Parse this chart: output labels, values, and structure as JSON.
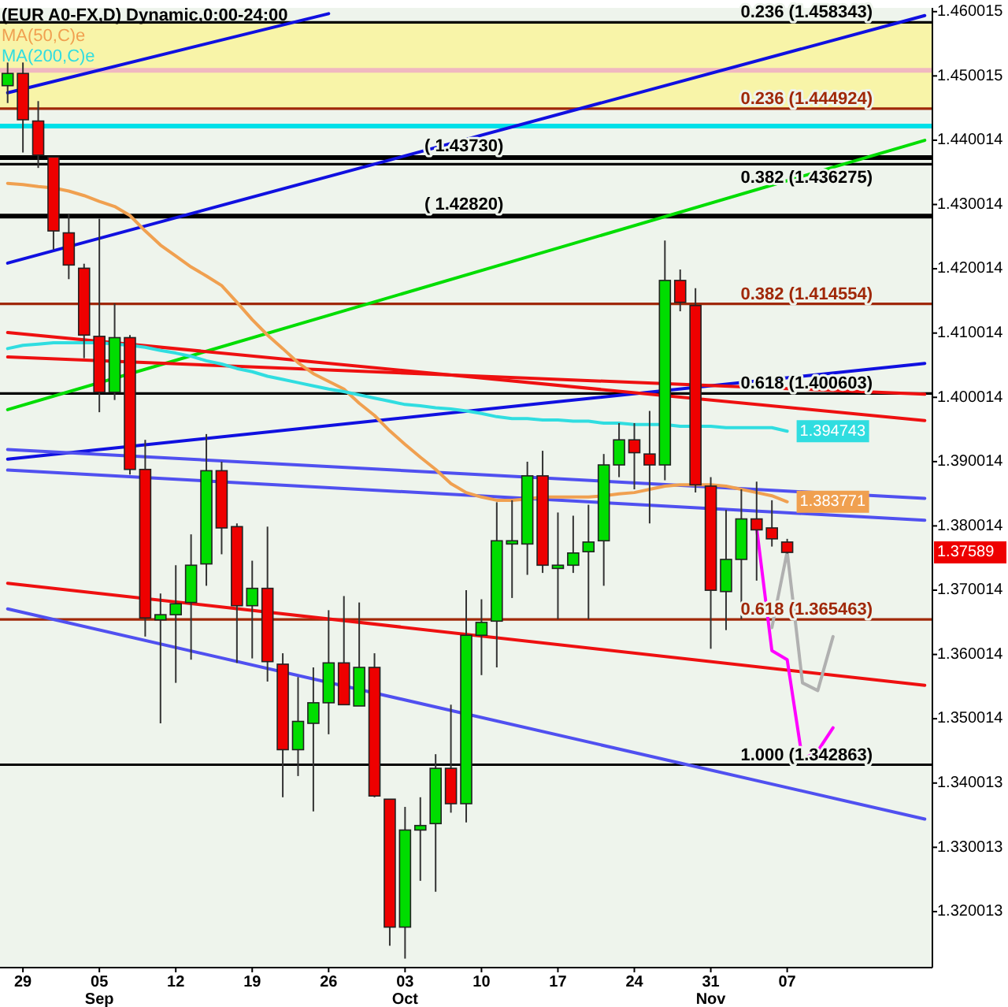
{
  "chart_data": {
    "type": "candlestick",
    "title": "(EUR A0-FX,D) Dynamic,0:00-24:00",
    "categories": [
      null,
      "29",
      null,
      null,
      null,
      null,
      "05\nSep",
      null,
      null,
      null,
      null,
      "12",
      null,
      null,
      null,
      null,
      "19",
      null,
      null,
      null,
      null,
      "26",
      null,
      null,
      null,
      null,
      "03\nOct",
      null,
      null,
      null,
      null,
      "10",
      null,
      null,
      null,
      null,
      "17",
      null,
      null,
      null,
      null,
      "24",
      null,
      null,
      null,
      null,
      "31\nNov",
      null,
      null,
      null,
      null,
      "07",
      null,
      null,
      null,
      null,
      null,
      null,
      null,
      null,
      null
    ],
    "ohlc": [
      [
        1.4485,
        1.4521,
        1.4458,
        1.4504
      ],
      [
        1.4504,
        1.4521,
        1.4381,
        1.4432
      ],
      [
        1.443,
        1.4461,
        1.4357,
        1.4377
      ],
      [
        1.4374,
        1.4374,
        1.423,
        1.4259
      ],
      [
        1.4256,
        1.4285,
        1.4184,
        1.4206
      ],
      [
        1.4201,
        1.4208,
        1.4061,
        1.4097
      ],
      [
        1.4095,
        1.4278,
        1.3977,
        1.4008
      ],
      [
        1.4008,
        1.4146,
        1.3996,
        1.4093
      ],
      [
        1.4093,
        1.4097,
        1.388,
        1.3888
      ],
      [
        1.3888,
        1.3934,
        1.3628,
        1.3657
      ],
      [
        1.3654,
        1.3695,
        1.3493,
        1.3662
      ],
      [
        1.3662,
        1.3739,
        1.3556,
        1.3679
      ],
      [
        1.3681,
        1.3787,
        1.3592,
        1.3739
      ],
      [
        1.3741,
        1.3943,
        1.3707,
        1.3886
      ],
      [
        1.3886,
        1.39,
        1.3756,
        1.3797
      ],
      [
        1.3799,
        1.3804,
        1.3587,
        1.3676
      ],
      [
        1.3676,
        1.3746,
        1.3594,
        1.3703
      ],
      [
        1.3703,
        1.3799,
        1.3558,
        1.3589
      ],
      [
        1.3585,
        1.3602,
        1.3378,
        1.3452
      ],
      [
        1.3452,
        1.3565,
        1.3411,
        1.3496
      ],
      [
        1.3493,
        1.358,
        1.3356,
        1.3525
      ],
      [
        1.3525,
        1.3669,
        1.3476,
        1.3587
      ],
      [
        1.3587,
        1.3691,
        1.3522,
        1.3522
      ],
      [
        1.352,
        1.3681,
        1.352,
        1.358
      ],
      [
        1.358,
        1.3602,
        1.3378,
        1.338
      ],
      [
        1.3375,
        1.3375,
        1.3147,
        1.3176
      ],
      [
        1.3176,
        1.3363,
        1.3127,
        1.3327
      ],
      [
        1.3327,
        1.3378,
        1.3248,
        1.3334
      ],
      [
        1.3337,
        1.3445,
        1.3231,
        1.3423
      ],
      [
        1.3423,
        1.3522,
        1.3354,
        1.3368
      ],
      [
        1.3368,
        1.37,
        1.3339,
        1.363
      ],
      [
        1.363,
        1.3686,
        1.3568,
        1.365
      ],
      [
        1.3652,
        1.3837,
        1.358,
        1.3777
      ],
      [
        1.3772,
        1.384,
        1.3688,
        1.3777
      ],
      [
        1.3772,
        1.39,
        1.3724,
        1.3878
      ],
      [
        1.3878,
        1.3917,
        1.3727,
        1.3739
      ],
      [
        1.3734,
        1.3821,
        1.3655,
        1.3739
      ],
      [
        1.3739,
        1.3816,
        1.3727,
        1.3758
      ],
      [
        1.376,
        1.3833,
        1.3655,
        1.3775
      ],
      [
        1.3777,
        1.3912,
        1.3707,
        1.3895
      ],
      [
        1.3895,
        1.396,
        1.3876,
        1.3934
      ],
      [
        1.3934,
        1.396,
        1.3857,
        1.3914
      ],
      [
        1.3912,
        1.3979,
        1.3804,
        1.3895
      ],
      [
        1.3895,
        1.4244,
        1.3871,
        1.4182
      ],
      [
        1.4182,
        1.4199,
        1.4134,
        1.4148
      ],
      [
        1.4143,
        1.417,
        1.3852,
        1.3864
      ],
      [
        1.3862,
        1.3876,
        1.3609,
        1.37
      ],
      [
        1.3698,
        1.3825,
        1.3638,
        1.3748
      ],
      [
        1.3748,
        1.3857,
        1.3655,
        1.3811
      ],
      [
        1.3811,
        1.3869,
        1.3715,
        1.3794
      ],
      [
        1.3797,
        1.384,
        1.3768,
        1.378
      ],
      [
        1.3775,
        1.378,
        1.3757,
        1.37589
      ],
      null,
      null,
      null,
      null,
      null,
      null,
      null,
      null,
      null
    ],
    "colors": [
      "#00dd00",
      "#ee0000",
      "#ee0000",
      "#ee0000",
      "#ee0000",
      "#ee0000",
      "#ee0000",
      "#00dd00",
      "#ee0000",
      "#ee0000",
      "#00dd00",
      "#00dd00",
      "#00dd00",
      "#00dd00",
      "#ee0000",
      "#ee0000",
      "#00dd00",
      "#ee0000",
      "#ee0000",
      "#00dd00",
      "#00dd00",
      "#00dd00",
      "#ee0000",
      "#00dd00",
      "#ee0000",
      "#ee0000",
      "#00dd00",
      "#00dd00",
      "#00dd00",
      "#ee0000",
      "#00dd00",
      "#00dd00",
      "#00dd00",
      "#00dd00",
      "#00dd00",
      "#ee0000",
      "#00dd00",
      "#00dd00",
      "#00dd00",
      "#00dd00",
      "#00dd00",
      "#ee0000",
      "#ee0000",
      "#00dd00",
      "#ee0000",
      "#ee0000",
      "#ee0000",
      "#00dd00",
      "#00dd00",
      "#ee0000",
      "#ee0000",
      "#ee0000",
      null,
      null,
      null,
      null,
      null,
      null,
      null,
      null,
      null
    ],
    "value_labels": [
      null,
      null,
      null,
      null,
      null,
      null,
      null,
      null,
      null,
      null,
      null,
      null,
      null,
      null,
      null,
      null,
      null,
      null,
      null,
      null,
      null,
      null,
      null,
      null,
      null,
      null,
      null,
      null,
      null,
      null,
      null,
      null,
      null,
      null,
      null,
      null,
      null,
      null,
      null,
      null,
      null,
      null,
      null,
      null,
      null,
      null,
      null,
      null,
      null,
      null,
      null,
      "1.37589",
      null,
      null,
      null,
      null,
      null,
      null,
      null,
      null,
      null
    ],
    "series": [
      {
        "type": "line",
        "name": "MA(50,C)e",
        "color": "#f0a050",
        "values": [
          1.4333,
          1.4331,
          1.4328,
          1.4326,
          1.4321,
          1.4314,
          1.4305,
          1.4297,
          1.4283,
          1.4259,
          1.4237,
          1.422,
          1.4203,
          1.4189,
          1.4174,
          1.4148,
          1.4121,
          1.4097,
          1.4076,
          1.4054,
          1.4037,
          1.4025,
          1.4013,
          1.3991,
          1.3972,
          1.3948,
          1.3927,
          1.3907,
          1.3888,
          1.3866,
          1.3852,
          1.3845,
          1.384,
          1.384,
          1.3842,
          1.3845,
          1.3845,
          1.3845,
          1.3845,
          1.3847,
          1.385,
          1.3852,
          1.3857,
          1.3862,
          1.3864,
          1.3864,
          1.3864,
          1.3862,
          1.3857,
          1.3852,
          1.3847,
          1.383771,
          null,
          null,
          null,
          null,
          null,
          null,
          null,
          null,
          null
        ],
        "value_labels": [
          null,
          null,
          null,
          null,
          null,
          null,
          null,
          null,
          null,
          null,
          null,
          null,
          null,
          null,
          null,
          null,
          null,
          null,
          null,
          null,
          null,
          null,
          null,
          null,
          null,
          null,
          null,
          null,
          null,
          null,
          null,
          null,
          null,
          null,
          null,
          null,
          null,
          null,
          null,
          null,
          null,
          null,
          null,
          null,
          null,
          null,
          null,
          null,
          null,
          null,
          null,
          "1.383771",
          null,
          null,
          null,
          null,
          null,
          null,
          null,
          null,
          null
        ]
      },
      {
        "type": "line",
        "name": "MA(200,C)e",
        "color": "#30dde0",
        "values": [
          1.4076,
          1.4081,
          1.4083,
          1.4085,
          1.4085,
          1.4085,
          1.4085,
          null,
          1.4081,
          1.4078,
          1.4073,
          1.4069,
          1.4064,
          1.4057,
          1.4052,
          1.4045,
          1.404,
          1.4033,
          1.4028,
          1.4023,
          1.4018,
          1.4013,
          1.4009,
          1.4004,
          1.3999,
          1.3994,
          1.3989,
          1.3987,
          1.3984,
          1.3982,
          1.3979,
          1.3975,
          1.397,
          1.3967,
          1.3967,
          1.3965,
          1.3965,
          1.3963,
          1.3963,
          1.396,
          1.396,
          1.3958,
          1.3958,
          1.3958,
          1.3955,
          1.3955,
          1.3955,
          1.3953,
          1.3953,
          1.3953,
          1.3953,
          1.394743,
          null,
          null,
          null,
          null,
          null,
          null,
          null,
          null,
          null
        ],
        "value_labels": [
          null,
          null,
          null,
          null,
          null,
          null,
          null,
          null,
          null,
          null,
          null,
          null,
          null,
          null,
          null,
          null,
          null,
          null,
          null,
          null,
          null,
          null,
          null,
          null,
          null,
          null,
          null,
          null,
          null,
          null,
          null,
          null,
          null,
          null,
          null,
          null,
          null,
          null,
          null,
          null,
          null,
          null,
          null,
          null,
          null,
          null,
          null,
          null,
          null,
          null,
          null,
          "1.394743",
          null,
          null,
          null,
          null,
          null,
          null,
          null,
          null,
          null
        ]
      },
      {
        "type": "line",
        "color": "#1010e0",
        "values": [
          1.4474,
          null,
          null,
          null,
          null,
          null,
          null,
          null,
          null,
          null,
          null,
          null,
          null,
          null,
          null,
          null,
          null,
          null,
          null,
          null,
          null,
          1.4597,
          null,
          null,
          null,
          null,
          null,
          null,
          null,
          null,
          null,
          null,
          null,
          null,
          null,
          null,
          null,
          null,
          null,
          null,
          null,
          null,
          null,
          null,
          null,
          null,
          null,
          null,
          null,
          null,
          null,
          null,
          null,
          null,
          null,
          null,
          null,
          null,
          null,
          null,
          null
        ]
      },
      {
        "type": "line",
        "color": "#1010e0",
        "values": [
          1.4209,
          null,
          null,
          null,
          null,
          null,
          null,
          null,
          null,
          null,
          null,
          null,
          null,
          null,
          null,
          null,
          null,
          null,
          null,
          null,
          null,
          null,
          null,
          null,
          null,
          null,
          null,
          null,
          null,
          null,
          null,
          null,
          null,
          null,
          null,
          null,
          null,
          null,
          null,
          null,
          null,
          null,
          null,
          null,
          null,
          null,
          null,
          null,
          null,
          null,
          null,
          null,
          null,
          null,
          null,
          null,
          null,
          null,
          null,
          null,
          1.4594
        ]
      },
      {
        "type": "line",
        "color": "#00dd00",
        "values": [
          1.3981,
          null,
          null,
          null,
          null,
          null,
          null,
          null,
          null,
          null,
          null,
          null,
          null,
          null,
          null,
          null,
          null,
          null,
          null,
          null,
          null,
          null,
          null,
          null,
          null,
          null,
          null,
          null,
          null,
          null,
          null,
          null,
          null,
          null,
          null,
          null,
          null,
          null,
          null,
          null,
          null,
          null,
          null,
          null,
          null,
          null,
          null,
          null,
          null,
          null,
          null,
          null,
          null,
          null,
          null,
          null,
          null,
          null,
          null,
          null,
          1.44
        ]
      },
      {
        "type": "line",
        "color": "#1010e0",
        "values": [
          1.3904,
          null,
          null,
          null,
          null,
          null,
          null,
          null,
          null,
          null,
          null,
          null,
          null,
          null,
          null,
          null,
          null,
          null,
          null,
          null,
          null,
          null,
          null,
          null,
          null,
          null,
          null,
          null,
          null,
          null,
          null,
          null,
          null,
          null,
          null,
          null,
          null,
          null,
          null,
          null,
          null,
          null,
          null,
          null,
          null,
          null,
          null,
          null,
          null,
          null,
          null,
          null,
          null,
          null,
          null,
          null,
          null,
          null,
          null,
          null,
          1.4053
        ]
      },
      {
        "type": "line",
        "color": "#ee1010",
        "values": [
          1.4101,
          null,
          null,
          null,
          null,
          null,
          null,
          null,
          null,
          null,
          null,
          null,
          null,
          null,
          null,
          null,
          null,
          null,
          null,
          null,
          null,
          null,
          null,
          null,
          null,
          null,
          null,
          null,
          null,
          null,
          null,
          null,
          null,
          null,
          null,
          null,
          null,
          null,
          null,
          null,
          null,
          null,
          null,
          null,
          null,
          null,
          null,
          null,
          null,
          null,
          null,
          null,
          null,
          null,
          null,
          null,
          null,
          null,
          null,
          null,
          1.3964
        ]
      },
      {
        "type": "line",
        "color": "#ee1010",
        "values": [
          1.4063,
          null,
          null,
          null,
          null,
          null,
          null,
          null,
          null,
          null,
          null,
          null,
          null,
          null,
          null,
          null,
          null,
          null,
          null,
          null,
          null,
          null,
          null,
          null,
          null,
          null,
          null,
          null,
          null,
          null,
          null,
          null,
          null,
          null,
          null,
          null,
          null,
          null,
          null,
          null,
          null,
          null,
          null,
          null,
          null,
          null,
          null,
          null,
          null,
          null,
          null,
          null,
          null,
          null,
          null,
          null,
          null,
          null,
          null,
          null,
          1.4005
        ]
      },
      {
        "type": "line",
        "color": "#5050f0",
        "values": [
          1.3919,
          null,
          null,
          null,
          null,
          null,
          null,
          null,
          null,
          null,
          null,
          null,
          null,
          null,
          null,
          null,
          null,
          null,
          null,
          null,
          null,
          null,
          null,
          null,
          null,
          null,
          null,
          null,
          null,
          null,
          null,
          null,
          null,
          null,
          null,
          null,
          null,
          null,
          null,
          null,
          null,
          null,
          null,
          null,
          null,
          null,
          null,
          null,
          null,
          null,
          null,
          null,
          null,
          null,
          null,
          null,
          null,
          null,
          null,
          null,
          1.3843
        ]
      },
      {
        "type": "line",
        "color": "#5050f0",
        "values": [
          1.3887,
          null,
          null,
          null,
          null,
          null,
          null,
          null,
          null,
          null,
          null,
          null,
          null,
          null,
          null,
          null,
          null,
          null,
          null,
          null,
          null,
          null,
          null,
          null,
          null,
          null,
          null,
          null,
          null,
          null,
          null,
          null,
          null,
          null,
          null,
          null,
          null,
          null,
          null,
          null,
          null,
          null,
          null,
          null,
          null,
          null,
          null,
          null,
          null,
          null,
          null,
          null,
          null,
          null,
          null,
          null,
          null,
          null,
          null,
          null,
          1.3809
        ]
      },
      {
        "type": "line",
        "color": "#ee1010",
        "values": [
          1.3711,
          null,
          null,
          null,
          null,
          null,
          null,
          null,
          null,
          null,
          null,
          null,
          null,
          null,
          null,
          null,
          null,
          null,
          null,
          null,
          null,
          null,
          null,
          null,
          null,
          null,
          null,
          null,
          null,
          null,
          null,
          null,
          null,
          null,
          null,
          null,
          null,
          null,
          null,
          null,
          null,
          null,
          null,
          null,
          null,
          null,
          null,
          null,
          null,
          null,
          null,
          null,
          null,
          null,
          null,
          null,
          null,
          null,
          null,
          null,
          1.3552
        ]
      },
      {
        "type": "line",
        "color": "#5050f0",
        "values": [
          1.3671,
          null,
          null,
          null,
          null,
          null,
          null,
          null,
          null,
          null,
          null,
          null,
          null,
          null,
          null,
          null,
          null,
          null,
          null,
          null,
          null,
          null,
          null,
          null,
          null,
          null,
          null,
          null,
          null,
          null,
          null,
          null,
          null,
          null,
          null,
          null,
          null,
          null,
          null,
          null,
          null,
          null,
          null,
          null,
          null,
          null,
          null,
          null,
          null,
          null,
          null,
          null,
          null,
          null,
          null,
          null,
          null,
          null,
          null,
          null,
          1.3344
        ]
      },
      {
        "type": "line",
        "color": "#ff00ff",
        "values": [
          null,
          null,
          null,
          null,
          null,
          null,
          null,
          null,
          null,
          null,
          null,
          null,
          null,
          null,
          null,
          null,
          null,
          null,
          null,
          null,
          null,
          null,
          null,
          null,
          null,
          null,
          null,
          null,
          null,
          null,
          null,
          null,
          null,
          null,
          null,
          null,
          null,
          null,
          null,
          null,
          null,
          null,
          null,
          null,
          null,
          null,
          null,
          null,
          null,
          1.3797,
          1.3606,
          1.3592,
          1.3436,
          1.345,
          1.3486,
          null,
          null,
          null,
          null,
          null,
          null
        ]
      },
      {
        "type": "line",
        "color": "#b0b0b0",
        "values": [
          null,
          null,
          null,
          null,
          null,
          null,
          null,
          null,
          null,
          null,
          null,
          null,
          null,
          null,
          null,
          null,
          null,
          null,
          null,
          null,
          null,
          null,
          null,
          null,
          null,
          null,
          null,
          null,
          null,
          null,
          null,
          null,
          null,
          null,
          null,
          null,
          null,
          null,
          null,
          null,
          null,
          null,
          null,
          null,
          null,
          null,
          null,
          null,
          null,
          null,
          1.3642,
          1.376,
          1.3556,
          1.3544,
          1.3628,
          null,
          null,
          null,
          null,
          null,
          null
        ]
      }
    ],
    "bands": [
      {
        "axis": "y",
        "from": 1.444924,
        "to": 1.458343,
        "label": null,
        "color": "#f8f4a8"
      }
    ],
    "ref_lines": [
      {
        "axis": "y",
        "value": 1.458343,
        "label": "0.236 (1.458343)",
        "color": "#000000"
      },
      {
        "axis": "y",
        "value": 1.4509,
        "label": null,
        "color": "#f0b8c0"
      },
      {
        "axis": "y",
        "value": 1.444924,
        "label": "0.236 (1.444924)",
        "color": "#a02808"
      },
      {
        "axis": "y",
        "value": 1.4422,
        "label": null,
        "color": "#00e0e8"
      },
      {
        "axis": "y",
        "value": 1.4373,
        "label": null,
        "color": "#000000"
      },
      {
        "axis": "y",
        "value": 1.436275,
        "label": "0.382 (1.436275)",
        "color": "#000000"
      },
      {
        "axis": "y",
        "value": 1.4282,
        "label": null,
        "color": "#000000"
      },
      {
        "axis": "y",
        "value": 1.414554,
        "label": "0.382 (1.414554)",
        "color": "#a02808"
      },
      {
        "axis": "y",
        "value": 1.400603,
        "label": "0.618 (1.400603)",
        "color": "#000000"
      },
      {
        "axis": "y",
        "value": 1.365463,
        "label": "0.618 (1.365463)",
        "color": "#a02808"
      },
      {
        "axis": "y",
        "value": 1.342863,
        "label": "1.000 (1.342863)",
        "color": "#000000"
      }
    ],
    "annotations": [
      {
        "text": "( 1.43730)",
        "y": 1.4373
      },
      {
        "text": "( 1.42820)",
        "y": 1.4282
      }
    ],
    "ylim": [
      1.3113,
      1.4606
    ],
    "yticks": [
      1.460015,
      1.450015,
      1.440014,
      1.430014,
      1.420014,
      1.410014,
      1.400014,
      1.390014,
      1.380014,
      1.370014,
      1.360014,
      1.350014,
      1.340013,
      1.330013,
      1.320013
    ],
    "legend": "top left"
  }
}
